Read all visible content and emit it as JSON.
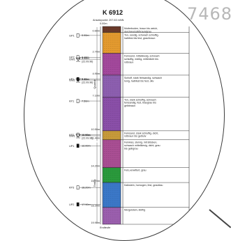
{
  "background_label": "7468",
  "log": {
    "title": "K 6912",
    "subtitle": "Ansatzpunkt: 207.63 mNN",
    "top_depth": "0.00m",
    "era_labels": [
      {
        "text": "Quartär",
        "from": 0.0,
        "to": 11.6
      },
      {
        "text": "Tertiär",
        "from": 11.6,
        "to": 19.9
      }
    ],
    "layers": [
      {
        "top": 0.0,
        "bottom": 0.6,
        "depth_label": "0.60m",
        "color": "#6b3a2a",
        "desc": "Mutterboden, braun bis weich, durchwurzelt/braun/grau"
      },
      {
        "top": 0.6,
        "bottom": 2.7,
        "depth_label": "2.70m",
        "color": "#e39a2f",
        "desc": "Ton, sandig, schwach schluffig, halbfest bis fest, grau/braun"
      },
      {
        "top": 2.7,
        "bottom": 4.9,
        "depth_label": "4.90m",
        "color": "#a3489c",
        "desc": "Feinsand, mittelkiesig, schwach schluffig, mäßig, mitteldicht bis rotbraun"
      },
      {
        "top": 4.9,
        "bottom": 7.1,
        "depth_label": "7.10m",
        "color": "#8d5fb0",
        "desc": "Schluff, stark feinsandig, schwach tonig, halbfest bis fest, dkv"
      },
      {
        "top": 7.1,
        "bottom": 10.5,
        "depth_label": "10.50m",
        "color": "#8a4fa8",
        "desc": "Ton, stark schluffig, schwach feinsandig, fest, blaugrau bis gelbbraun"
      },
      {
        "top": 10.5,
        "bottom": 11.4,
        "depth_label": "11.40m",
        "color": "#c79a3a",
        "desc": "Feinsand, stark schluffig, dicht, rotbraun bis gelbolv"
      },
      {
        "top": 11.4,
        "bottom": 14.2,
        "depth_label": "14.20m",
        "color": "#a94e93",
        "desc": "Feinkies, steinig, mit Blöcken, schwach mittelkiesig, dicht, grau bis gelbgrau"
      },
      {
        "top": 14.2,
        "bottom": 15.7,
        "depth_label": "15.70m",
        "color": "#2a9a3c",
        "desc": "Fels,verwittert, grau"
      },
      {
        "top": 15.7,
        "bottom": 18.2,
        "depth_label": "18.20m",
        "color": "#3b78c8",
        "desc": "Kalkstein, homogen, fest, graublau"
      },
      {
        "top": 18.2,
        "bottom": 19.9,
        "depth_label": "19.90m",
        "color": "#9b5fae",
        "desc": "Mergelstein, klüftig"
      }
    ],
    "end_label": "Endteufe",
    "samples": [
      {
        "id": "GP1",
        "depth": 0.9,
        "label": "0.90m",
        "kind": "open"
      },
      {
        "id": "GP2",
        "depth": 3.1,
        "label": "3.10m",
        "kind": "open"
      },
      {
        "id": "GW1",
        "depth": 3.3,
        "label": "3.30m",
        "kind": "water",
        "date": "(22.09.96)"
      },
      {
        "id": "UP1",
        "depth": 5.3,
        "label": "5.30m",
        "kind": "filled"
      },
      {
        "id": "GW2",
        "depth": 5.4,
        "label": "5.40m",
        "kind": "water",
        "date": "(22.09.96)"
      },
      {
        "id": "KP1",
        "depth": 7.5,
        "label": "7.50m",
        "kind": "open"
      },
      {
        "id": "KP2",
        "depth": 10.9,
        "label": "10.90m",
        "kind": "open"
      },
      {
        "id": "GW1",
        "depth": 11.0,
        "label": "11.00m",
        "kind": "water",
        "date": "(22.09.96)"
      },
      {
        "id": "UP1",
        "depth": 12.0,
        "label": "12.00m",
        "kind": "filled"
      },
      {
        "id": "KP3",
        "depth": 16.2,
        "label": "16.20m",
        "kind": "open"
      },
      {
        "id": "UP2",
        "depth": 17.9,
        "label": "17.90m",
        "kind": "filled"
      }
    ]
  }
}
